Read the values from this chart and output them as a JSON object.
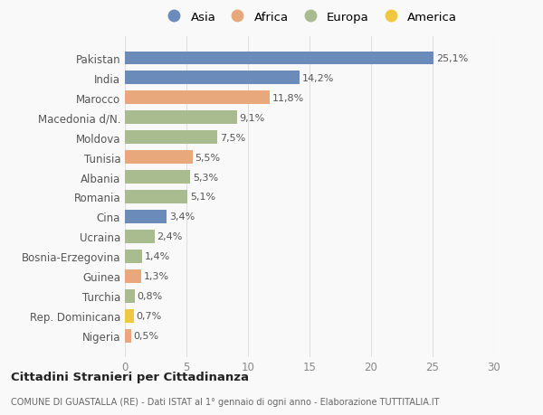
{
  "categories": [
    "Pakistan",
    "India",
    "Marocco",
    "Macedonia d/N.",
    "Moldova",
    "Tunisia",
    "Albania",
    "Romania",
    "Cina",
    "Ucraina",
    "Bosnia-Erzegovina",
    "Guinea",
    "Turchia",
    "Rep. Dominicana",
    "Nigeria"
  ],
  "values": [
    25.1,
    14.2,
    11.8,
    9.1,
    7.5,
    5.5,
    5.3,
    5.1,
    3.4,
    2.4,
    1.4,
    1.3,
    0.8,
    0.7,
    0.5
  ],
  "labels": [
    "25,1%",
    "14,2%",
    "11,8%",
    "9,1%",
    "7,5%",
    "5,5%",
    "5,3%",
    "5,1%",
    "3,4%",
    "2,4%",
    "1,4%",
    "1,3%",
    "0,8%",
    "0,7%",
    "0,5%"
  ],
  "continents": [
    "Asia",
    "Asia",
    "Africa",
    "Europa",
    "Europa",
    "Africa",
    "Europa",
    "Europa",
    "Asia",
    "Europa",
    "Europa",
    "Africa",
    "Europa",
    "America",
    "Africa"
  ],
  "colors": {
    "Asia": "#6b8cba",
    "Africa": "#e8a87c",
    "Europa": "#a8bc8f",
    "America": "#f0c840"
  },
  "legend_order": [
    "Asia",
    "Africa",
    "Europa",
    "America"
  ],
  "title1": "Cittadini Stranieri per Cittadinanza",
  "title2": "COMUNE DI GUASTALLA (RE) - Dati ISTAT al 1° gennaio di ogni anno - Elaborazione TUTTITALIA.IT",
  "xlim": [
    0,
    30
  ],
  "xticks": [
    0,
    5,
    10,
    15,
    20,
    25,
    30
  ],
  "background_color": "#f9f9f9",
  "grid_color": "#e0e0e0"
}
